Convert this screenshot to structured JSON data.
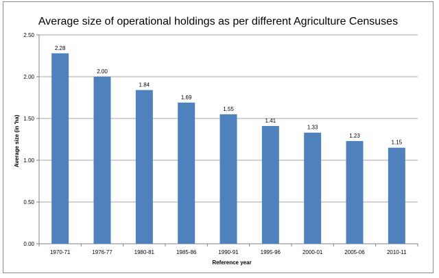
{
  "chart_data": {
    "type": "bar",
    "title": "Average size of operational holdings as per different Agriculture Censuses",
    "xlabel": "Reference year",
    "ylabel": "Average size (in 'ha)",
    "categories": [
      "1970-71",
      "1976-77",
      "1980-81",
      "1985-86",
      "1990-91",
      "1995-96",
      "2000-01",
      "2005-06",
      "2010-11"
    ],
    "values": [
      2.28,
      2.0,
      1.84,
      1.69,
      1.55,
      1.41,
      1.33,
      1.23,
      1.15
    ],
    "data_labels": [
      "2.28",
      "2.00",
      "1.84",
      "1.69",
      "1.55",
      "1.41",
      "1.33",
      "1.23",
      "1.15"
    ],
    "ylim": [
      0,
      2.5
    ],
    "y_ticks": [
      "0.00",
      "0.50",
      "1.00",
      "1.50",
      "2.00",
      "2.50"
    ],
    "y_tick_values": [
      0,
      0.5,
      1,
      1.5,
      2,
      2.5
    ],
    "grid": true,
    "legend": "none",
    "bar_color": "#4f81bd",
    "grid_color": "#a6a6a6"
  }
}
